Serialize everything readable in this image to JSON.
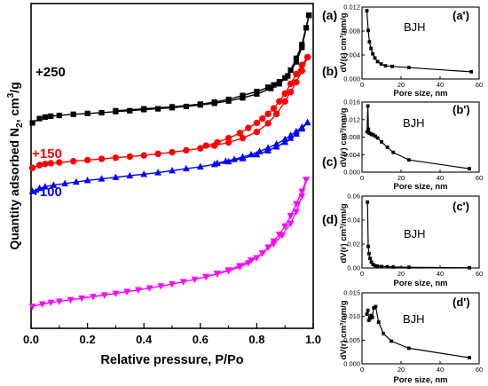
{
  "chart_data": [
    {
      "type": "line",
      "panel": "main",
      "xlabel": "Relative pressure, P/Po",
      "ylabel_pre": "Quantity adsorbed N",
      "ylabel_sub": "2",
      "ylabel_post": ", cm",
      "ylabel_sup": "3",
      "ylabel_end": "/g",
      "xlim": [
        0.0,
        1.0
      ],
      "xticks": [
        "0.0",
        "0.2",
        "0.4",
        "0.6",
        "0.8",
        "1.0"
      ],
      "yticks_shown": false,
      "series": [
        {
          "label": "(a)",
          "offset_label": "+250",
          "color": "#000000",
          "marker": "square",
          "ads": [
            [
              0.005,
              225
            ],
            [
              0.03,
              236
            ],
            [
              0.05,
              240
            ],
            [
              0.07,
              242
            ],
            [
              0.1,
              244
            ],
            [
              0.15,
              247
            ],
            [
              0.2,
              249
            ],
            [
              0.25,
              251
            ],
            [
              0.3,
              254
            ],
            [
              0.35,
              256
            ],
            [
              0.4,
              259
            ],
            [
              0.45,
              261
            ],
            [
              0.5,
              264
            ],
            [
              0.55,
              267
            ],
            [
              0.6,
              271
            ],
            [
              0.65,
              275
            ],
            [
              0.7,
              281
            ],
            [
              0.75,
              289
            ],
            [
              0.8,
              299
            ],
            [
              0.85,
              313
            ],
            [
              0.88,
              325
            ],
            [
              0.91,
              345
            ],
            [
              0.94,
              381
            ],
            [
              0.96,
              418
            ],
            [
              0.975,
              468
            ],
            [
              0.985,
              500
            ]
          ],
          "des": [
            [
              0.985,
              500
            ],
            [
              0.96,
              425
            ],
            [
              0.94,
              390
            ],
            [
              0.92,
              360
            ],
            [
              0.9,
              340
            ],
            [
              0.88,
              330
            ],
            [
              0.86,
              322
            ],
            [
              0.84,
              316
            ],
            [
              0.8,
              305
            ],
            [
              0.75,
              295
            ],
            [
              0.7,
              285
            ],
            [
              0.65,
              278
            ],
            [
              0.6,
              273
            ],
            [
              0.5,
              266
            ],
            [
              0.4,
              261
            ],
            [
              0.3,
              256
            ]
          ]
        },
        {
          "label": "(b)",
          "offset_label": "+150",
          "color": "#ff0000",
          "marker": "circle",
          "ads": [
            [
              0.005,
              110
            ],
            [
              0.03,
              117
            ],
            [
              0.05,
              120
            ],
            [
              0.07,
              122
            ],
            [
              0.1,
              124
            ],
            [
              0.15,
              127
            ],
            [
              0.2,
              130
            ],
            [
              0.25,
              133
            ],
            [
              0.3,
              136
            ],
            [
              0.35,
              139
            ],
            [
              0.4,
              142
            ],
            [
              0.45,
              146
            ],
            [
              0.5,
              150
            ],
            [
              0.55,
              155
            ],
            [
              0.6,
              160
            ],
            [
              0.65,
              167
            ],
            [
              0.7,
              175
            ],
            [
              0.75,
              186
            ],
            [
              0.8,
              202
            ],
            [
              0.84,
              224
            ],
            [
              0.87,
              248
            ],
            [
              0.9,
              280
            ],
            [
              0.92,
              304
            ],
            [
              0.94,
              329
            ],
            [
              0.96,
              358
            ],
            [
              0.98,
              393
            ]
          ],
          "des": [
            [
              0.98,
              393
            ],
            [
              0.96,
              373
            ],
            [
              0.94,
              350
            ],
            [
              0.92,
              325
            ],
            [
              0.9,
              300
            ],
            [
              0.88,
              280
            ],
            [
              0.86,
              262
            ],
            [
              0.84,
              248
            ],
            [
              0.82,
              236
            ],
            [
              0.8,
              225
            ],
            [
              0.77,
              212
            ],
            [
              0.74,
              199
            ],
            [
              0.7,
              186
            ],
            [
              0.66,
              175
            ],
            [
              0.62,
              167
            ]
          ]
        },
        {
          "label": "(c)",
          "offset_label": "+100",
          "color": "#0000ff",
          "marker": "triangle-up",
          "ads": [
            [
              0.005,
              50
            ],
            [
              0.03,
              58
            ],
            [
              0.05,
              62
            ],
            [
              0.08,
              66
            ],
            [
              0.12,
              70
            ],
            [
              0.16,
              74
            ],
            [
              0.2,
              78
            ],
            [
              0.25,
              82
            ],
            [
              0.3,
              86
            ],
            [
              0.35,
              90
            ],
            [
              0.4,
              94
            ],
            [
              0.45,
              98
            ],
            [
              0.5,
              103
            ],
            [
              0.55,
              108
            ],
            [
              0.6,
              113
            ],
            [
              0.65,
              119
            ],
            [
              0.7,
              126
            ],
            [
              0.75,
              134
            ],
            [
              0.8,
              144
            ],
            [
              0.84,
              154
            ],
            [
              0.87,
              164
            ],
            [
              0.9,
              176
            ],
            [
              0.92,
              186
            ],
            [
              0.94,
              197
            ],
            [
              0.96,
              210
            ],
            [
              0.98,
              226
            ]
          ],
          "des": [
            [
              0.98,
              226
            ],
            [
              0.96,
              214
            ],
            [
              0.94,
              203
            ],
            [
              0.92,
              193
            ],
            [
              0.9,
              183
            ],
            [
              0.87,
              171
            ],
            [
              0.84,
              161
            ],
            [
              0.81,
              152
            ],
            [
              0.78,
              144
            ],
            [
              0.75,
              138
            ],
            [
              0.72,
              132
            ],
            [
              0.69,
              127
            ],
            [
              0.66,
              122
            ]
          ]
        },
        {
          "label": "(d)",
          "offset_label": "",
          "color": "#ff00ff",
          "marker": "triangle-down",
          "ads": [
            [
              0.005,
              -244
            ],
            [
              0.04,
              -238
            ],
            [
              0.07,
              -234
            ],
            [
              0.1,
              -231
            ],
            [
              0.14,
              -227
            ],
            [
              0.18,
              -223
            ],
            [
              0.22,
              -219
            ],
            [
              0.26,
              -215
            ],
            [
              0.3,
              -211
            ],
            [
              0.34,
              -206
            ],
            [
              0.38,
              -202
            ],
            [
              0.42,
              -197
            ],
            [
              0.46,
              -192
            ],
            [
              0.5,
              -187
            ],
            [
              0.54,
              -181
            ],
            [
              0.58,
              -175
            ],
            [
              0.62,
              -168
            ],
            [
              0.66,
              -160
            ],
            [
              0.7,
              -151
            ],
            [
              0.74,
              -140
            ],
            [
              0.78,
              -126
            ],
            [
              0.82,
              -108
            ],
            [
              0.86,
              -84
            ],
            [
              0.89,
              -62
            ],
            [
              0.92,
              -32
            ],
            [
              0.94,
              -2
            ],
            [
              0.96,
              38
            ],
            [
              0.975,
              80
            ]
          ],
          "des": [
            [
              0.975,
              80
            ],
            [
              0.96,
              50
            ],
            [
              0.94,
              18
            ],
            [
              0.92,
              -12
            ],
            [
              0.9,
              -39
            ],
            [
              0.88,
              -60
            ],
            [
              0.86,
              -77
            ],
            [
              0.84,
              -93
            ],
            [
              0.82,
              -108
            ],
            [
              0.8,
              -120
            ],
            [
              0.77,
              -133
            ],
            [
              0.74,
              -143
            ],
            [
              0.7,
              -153
            ],
            [
              0.66,
              -161
            ],
            [
              0.62,
              -168
            ]
          ]
        }
      ]
    },
    {
      "type": "line",
      "panel": "a'",
      "panel_label": "(a')",
      "annotation": "BJH",
      "xlabel": "Pore size, nm",
      "ylabel": "dV(r) cm³/nm/g",
      "xlim": [
        0,
        60
      ],
      "ylim": [
        0,
        0.012
      ],
      "xticks": [
        "0",
        "20",
        "40",
        "60"
      ],
      "yticks": [
        "0.000",
        "0.004",
        "0.008",
        "0.012"
      ],
      "points": [
        [
          2.5,
          0.0114
        ],
        [
          3.2,
          0.0081
        ],
        [
          3.8,
          0.0062
        ],
        [
          4.6,
          0.0051
        ],
        [
          5.5,
          0.0042
        ],
        [
          6.6,
          0.0035
        ],
        [
          8,
          0.0029
        ],
        [
          9.8,
          0.0025
        ],
        [
          12,
          0.0022
        ],
        [
          15.5,
          0.0021
        ],
        [
          24,
          0.0019
        ],
        [
          56,
          0.0012
        ]
      ]
    },
    {
      "type": "line",
      "panel": "b'",
      "panel_label": "(b')",
      "annotation": "BJH",
      "xlabel": "Pore size, nm",
      "ylabel": "dV(r) cm³/nm/g",
      "xlim": [
        0,
        60
      ],
      "ylim": [
        0,
        0.016
      ],
      "xticks": [
        "0",
        "20",
        "40",
        "60"
      ],
      "yticks": [
        "0.000",
        "0.004",
        "0.008",
        "0.012",
        "0.016"
      ],
      "points": [
        [
          2.6,
          0.0092
        ],
        [
          3.0,
          0.0151
        ],
        [
          3.3,
          0.0098
        ],
        [
          3.7,
          0.0089
        ],
        [
          4.3,
          0.0088
        ],
        [
          5.0,
          0.0086
        ],
        [
          5.8,
          0.0085
        ],
        [
          6.8,
          0.0082
        ],
        [
          8,
          0.0078
        ],
        [
          10,
          0.0069
        ],
        [
          13,
          0.0057
        ],
        [
          16,
          0.0045
        ],
        [
          24,
          0.0028
        ],
        [
          55,
          0.0008
        ]
      ]
    },
    {
      "type": "line",
      "panel": "c'",
      "panel_label": "(c')",
      "annotation": "BJH",
      "xlabel": "Pore size, nm",
      "ylabel": "dV(r) cm³/nm/g",
      "xlim": [
        0,
        60
      ],
      "ylim": [
        0,
        0.06
      ],
      "xticks": [
        "0",
        "20",
        "40",
        "60"
      ],
      "yticks": [
        "0.00",
        "0.02",
        "0.04",
        "0.06"
      ],
      "points": [
        [
          2.8,
          0.055
        ],
        [
          3.2,
          0.018
        ],
        [
          3.6,
          0.012
        ],
        [
          4.1,
          0.008
        ],
        [
          4.8,
          0.005
        ],
        [
          5.6,
          0.003
        ],
        [
          6.6,
          0.002
        ],
        [
          8,
          0.0015
        ],
        [
          10,
          0.0012
        ],
        [
          13,
          0.001
        ],
        [
          16,
          0.0008
        ],
        [
          24,
          0.0006
        ],
        [
          55,
          0.0002
        ]
      ]
    },
    {
      "type": "line",
      "panel": "d'",
      "panel_label": "(d')",
      "annotation": "BJH",
      "xlabel": "Pore size, nm",
      "ylabel": "dV(r) cm³/nm/g",
      "xlim": [
        0,
        60
      ],
      "ylim": [
        0,
        0.015
      ],
      "xticks": [
        "0",
        "20",
        "40",
        "60"
      ],
      "yticks": [
        "0.000",
        "0.005",
        "0.010",
        "0.015"
      ],
      "points": [
        [
          2.5,
          0.0105
        ],
        [
          3.0,
          0.0113
        ],
        [
          3.5,
          0.0092
        ],
        [
          4.0,
          0.0095
        ],
        [
          4.6,
          0.0102
        ],
        [
          5.3,
          0.0098
        ],
        [
          6.0,
          0.0118
        ],
        [
          7.0,
          0.0121
        ],
        [
          8.5,
          0.0088
        ],
        [
          11,
          0.0064
        ],
        [
          15,
          0.0048
        ],
        [
          24,
          0.0033
        ],
        [
          55,
          0.0013
        ]
      ]
    }
  ]
}
